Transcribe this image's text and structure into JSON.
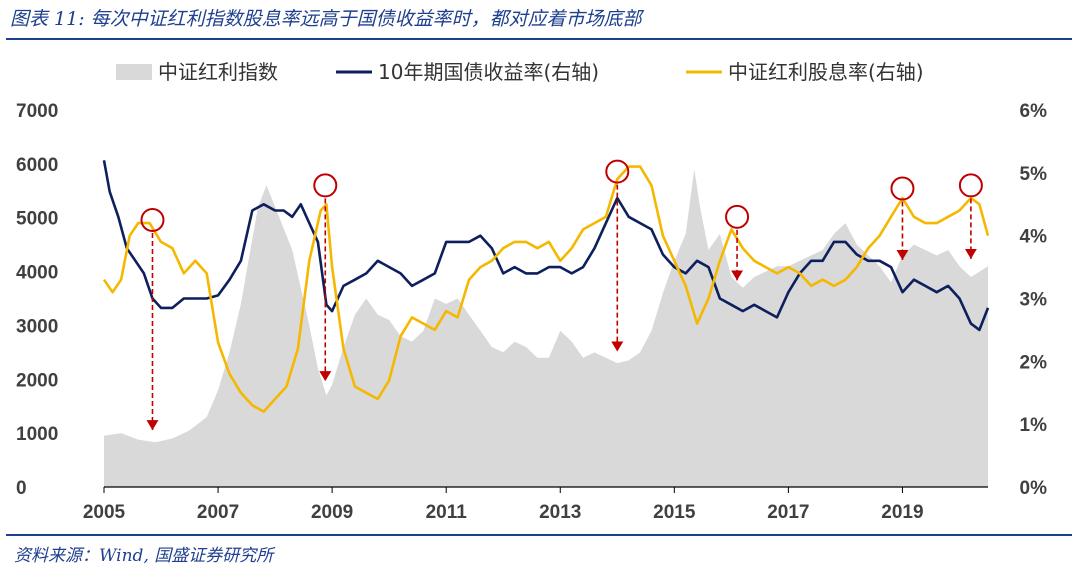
{
  "figure": {
    "title": "图表 11:  每次中证红利指数股息率远高于国债收益率时，都对应着市场底部",
    "source": "资料来源：Wind,  国盛证券研究所"
  },
  "chart_data": {
    "type": "area+line",
    "title": "",
    "xlabel": "",
    "ylabel_left": "",
    "ylabel_right": "",
    "x_ticks": [
      "2005",
      "2007",
      "2009",
      "2011",
      "2013",
      "2015",
      "2017",
      "2019"
    ],
    "x_range": [
      2005.0,
      2020.5
    ],
    "y_left": {
      "ticks": [
        "0",
        "1000",
        "2000",
        "3000",
        "4000",
        "5000",
        "6000",
        "7000"
      ],
      "range": [
        0,
        7000
      ]
    },
    "y_right": {
      "ticks": [
        "0%",
        "1%",
        "2%",
        "3%",
        "4%",
        "5%",
        "6%"
      ],
      "range": [
        0,
        6
      ],
      "unit": "%"
    },
    "legend": {
      "placement": "top"
    },
    "series": [
      {
        "name": "中证红利指数",
        "kind": "area",
        "axis": "left",
        "color": "#d9d9d9",
        "points": [
          [
            2005.0,
            950
          ],
          [
            2005.3,
            1000
          ],
          [
            2005.6,
            880
          ],
          [
            2005.9,
            830
          ],
          [
            2006.2,
            900
          ],
          [
            2006.5,
            1050
          ],
          [
            2006.8,
            1300
          ],
          [
            2007.0,
            1800
          ],
          [
            2007.2,
            2500
          ],
          [
            2007.4,
            3400
          ],
          [
            2007.55,
            4300
          ],
          [
            2007.7,
            5200
          ],
          [
            2007.85,
            5600
          ],
          [
            2008.0,
            5200
          ],
          [
            2008.15,
            4800
          ],
          [
            2008.3,
            4400
          ],
          [
            2008.45,
            3700
          ],
          [
            2008.6,
            3000
          ],
          [
            2008.75,
            2200
          ],
          [
            2008.9,
            1700
          ],
          [
            2009.0,
            1900
          ],
          [
            2009.2,
            2600
          ],
          [
            2009.4,
            3200
          ],
          [
            2009.6,
            3500
          ],
          [
            2009.8,
            3200
          ],
          [
            2010.0,
            3100
          ],
          [
            2010.2,
            2800
          ],
          [
            2010.4,
            2700
          ],
          [
            2010.6,
            2900
          ],
          [
            2010.8,
            3500
          ],
          [
            2011.0,
            3400
          ],
          [
            2011.2,
            3500
          ],
          [
            2011.4,
            3200
          ],
          [
            2011.6,
            2900
          ],
          [
            2011.8,
            2600
          ],
          [
            2012.0,
            2500
          ],
          [
            2012.2,
            2700
          ],
          [
            2012.4,
            2600
          ],
          [
            2012.6,
            2400
          ],
          [
            2012.8,
            2400
          ],
          [
            2013.0,
            2900
          ],
          [
            2013.2,
            2700
          ],
          [
            2013.4,
            2400
          ],
          [
            2013.6,
            2500
          ],
          [
            2013.8,
            2400
          ],
          [
            2014.0,
            2300
          ],
          [
            2014.2,
            2350
          ],
          [
            2014.4,
            2500
          ],
          [
            2014.6,
            2900
          ],
          [
            2014.8,
            3600
          ],
          [
            2015.0,
            4200
          ],
          [
            2015.2,
            4700
          ],
          [
            2015.35,
            5900
          ],
          [
            2015.45,
            5200
          ],
          [
            2015.6,
            4400
          ],
          [
            2015.8,
            4700
          ],
          [
            2016.0,
            3900
          ],
          [
            2016.2,
            3700
          ],
          [
            2016.4,
            3900
          ],
          [
            2016.6,
            4000
          ],
          [
            2016.8,
            4100
          ],
          [
            2017.0,
            4100
          ],
          [
            2017.2,
            4200
          ],
          [
            2017.4,
            4300
          ],
          [
            2017.6,
            4400
          ],
          [
            2017.8,
            4700
          ],
          [
            2018.0,
            4900
          ],
          [
            2018.2,
            4500
          ],
          [
            2018.4,
            4300
          ],
          [
            2018.6,
            4100
          ],
          [
            2018.8,
            3800
          ],
          [
            2019.0,
            4300
          ],
          [
            2019.2,
            4500
          ],
          [
            2019.4,
            4400
          ],
          [
            2019.6,
            4300
          ],
          [
            2019.8,
            4400
          ],
          [
            2020.0,
            4100
          ],
          [
            2020.2,
            3900
          ],
          [
            2020.5,
            4100
          ]
        ]
      },
      {
        "name": "10年期国债收益率(右轴)",
        "kind": "line",
        "axis": "right",
        "color": "#0d1f5c",
        "points": [
          [
            2005.0,
            5.2
          ],
          [
            2005.1,
            4.7
          ],
          [
            2005.25,
            4.3
          ],
          [
            2005.4,
            3.8
          ],
          [
            2005.55,
            3.6
          ],
          [
            2005.7,
            3.4
          ],
          [
            2005.85,
            3.0
          ],
          [
            2006.0,
            2.85
          ],
          [
            2006.2,
            2.85
          ],
          [
            2006.4,
            3.0
          ],
          [
            2006.6,
            3.0
          ],
          [
            2006.8,
            3.0
          ],
          [
            2007.0,
            3.05
          ],
          [
            2007.2,
            3.3
          ],
          [
            2007.4,
            3.6
          ],
          [
            2007.6,
            4.4
          ],
          [
            2007.8,
            4.5
          ],
          [
            2008.0,
            4.4
          ],
          [
            2008.15,
            4.4
          ],
          [
            2008.3,
            4.3
          ],
          [
            2008.45,
            4.5
          ],
          [
            2008.6,
            4.2
          ],
          [
            2008.75,
            3.9
          ],
          [
            2008.9,
            2.9
          ],
          [
            2009.0,
            2.8
          ],
          [
            2009.2,
            3.2
          ],
          [
            2009.4,
            3.3
          ],
          [
            2009.6,
            3.4
          ],
          [
            2009.8,
            3.6
          ],
          [
            2010.0,
            3.5
          ],
          [
            2010.2,
            3.4
          ],
          [
            2010.4,
            3.2
          ],
          [
            2010.6,
            3.3
          ],
          [
            2010.8,
            3.4
          ],
          [
            2011.0,
            3.9
          ],
          [
            2011.2,
            3.9
          ],
          [
            2011.4,
            3.9
          ],
          [
            2011.6,
            4.0
          ],
          [
            2011.8,
            3.8
          ],
          [
            2012.0,
            3.4
          ],
          [
            2012.2,
            3.5
          ],
          [
            2012.4,
            3.4
          ],
          [
            2012.6,
            3.4
          ],
          [
            2012.8,
            3.5
          ],
          [
            2013.0,
            3.5
          ],
          [
            2013.2,
            3.4
          ],
          [
            2013.4,
            3.5
          ],
          [
            2013.6,
            3.8
          ],
          [
            2013.8,
            4.2
          ],
          [
            2014.0,
            4.6
          ],
          [
            2014.2,
            4.3
          ],
          [
            2014.4,
            4.2
          ],
          [
            2014.6,
            4.1
          ],
          [
            2014.8,
            3.7
          ],
          [
            2015.0,
            3.5
          ],
          [
            2015.2,
            3.4
          ],
          [
            2015.4,
            3.6
          ],
          [
            2015.6,
            3.5
          ],
          [
            2015.8,
            3.0
          ],
          [
            2016.0,
            2.9
          ],
          [
            2016.2,
            2.8
          ],
          [
            2016.4,
            2.9
          ],
          [
            2016.6,
            2.8
          ],
          [
            2016.8,
            2.7
          ],
          [
            2017.0,
            3.1
          ],
          [
            2017.2,
            3.4
          ],
          [
            2017.4,
            3.6
          ],
          [
            2017.6,
            3.6
          ],
          [
            2017.8,
            3.9
          ],
          [
            2018.0,
            3.9
          ],
          [
            2018.2,
            3.7
          ],
          [
            2018.4,
            3.6
          ],
          [
            2018.6,
            3.6
          ],
          [
            2018.8,
            3.5
          ],
          [
            2019.0,
            3.1
          ],
          [
            2019.2,
            3.3
          ],
          [
            2019.4,
            3.2
          ],
          [
            2019.6,
            3.1
          ],
          [
            2019.8,
            3.2
          ],
          [
            2020.0,
            3.0
          ],
          [
            2020.2,
            2.6
          ],
          [
            2020.35,
            2.5
          ],
          [
            2020.5,
            2.85
          ]
        ]
      },
      {
        "name": "中证红利股息率(右轴)",
        "kind": "line",
        "axis": "right",
        "color": "#f5b800",
        "points": [
          [
            2005.0,
            3.3
          ],
          [
            2005.15,
            3.1
          ],
          [
            2005.3,
            3.3
          ],
          [
            2005.45,
            4.0
          ],
          [
            2005.6,
            4.2
          ],
          [
            2005.8,
            4.2
          ],
          [
            2006.0,
            3.9
          ],
          [
            2006.2,
            3.8
          ],
          [
            2006.4,
            3.4
          ],
          [
            2006.6,
            3.6
          ],
          [
            2006.8,
            3.4
          ],
          [
            2007.0,
            2.3
          ],
          [
            2007.2,
            1.8
          ],
          [
            2007.4,
            1.5
          ],
          [
            2007.6,
            1.3
          ],
          [
            2007.8,
            1.2
          ],
          [
            2008.0,
            1.4
          ],
          [
            2008.2,
            1.6
          ],
          [
            2008.4,
            2.2
          ],
          [
            2008.6,
            3.6
          ],
          [
            2008.8,
            4.4
          ],
          [
            2008.9,
            4.5
          ],
          [
            2009.0,
            3.5
          ],
          [
            2009.2,
            2.2
          ],
          [
            2009.4,
            1.6
          ],
          [
            2009.6,
            1.5
          ],
          [
            2009.8,
            1.4
          ],
          [
            2010.0,
            1.7
          ],
          [
            2010.2,
            2.4
          ],
          [
            2010.4,
            2.7
          ],
          [
            2010.6,
            2.6
          ],
          [
            2010.8,
            2.5
          ],
          [
            2011.0,
            2.8
          ],
          [
            2011.2,
            2.7
          ],
          [
            2011.4,
            3.3
          ],
          [
            2011.6,
            3.5
          ],
          [
            2011.8,
            3.6
          ],
          [
            2012.0,
            3.8
          ],
          [
            2012.2,
            3.9
          ],
          [
            2012.4,
            3.9
          ],
          [
            2012.6,
            3.8
          ],
          [
            2012.8,
            3.9
          ],
          [
            2013.0,
            3.6
          ],
          [
            2013.2,
            3.8
          ],
          [
            2013.4,
            4.1
          ],
          [
            2013.6,
            4.2
          ],
          [
            2013.8,
            4.3
          ],
          [
            2014.0,
            4.9
          ],
          [
            2014.2,
            5.1
          ],
          [
            2014.4,
            5.1
          ],
          [
            2014.6,
            4.8
          ],
          [
            2014.8,
            4.0
          ],
          [
            2015.0,
            3.6
          ],
          [
            2015.2,
            3.2
          ],
          [
            2015.4,
            2.6
          ],
          [
            2015.6,
            3.0
          ],
          [
            2015.8,
            3.6
          ],
          [
            2016.0,
            4.1
          ],
          [
            2016.2,
            3.8
          ],
          [
            2016.4,
            3.6
          ],
          [
            2016.6,
            3.5
          ],
          [
            2016.8,
            3.4
          ],
          [
            2017.0,
            3.5
          ],
          [
            2017.2,
            3.4
          ],
          [
            2017.4,
            3.2
          ],
          [
            2017.6,
            3.3
          ],
          [
            2017.8,
            3.2
          ],
          [
            2018.0,
            3.3
          ],
          [
            2018.2,
            3.5
          ],
          [
            2018.4,
            3.8
          ],
          [
            2018.6,
            4.0
          ],
          [
            2018.8,
            4.3
          ],
          [
            2019.0,
            4.6
          ],
          [
            2019.2,
            4.3
          ],
          [
            2019.4,
            4.2
          ],
          [
            2019.6,
            4.2
          ],
          [
            2019.8,
            4.3
          ],
          [
            2020.0,
            4.4
          ],
          [
            2020.2,
            4.6
          ],
          [
            2020.35,
            4.5
          ],
          [
            2020.5,
            4.0
          ]
        ]
      }
    ],
    "annotations": [
      {
        "marker": "circle",
        "arrow": "down",
        "x": 2005.85,
        "from_y_right": 4.25,
        "to_y_left": 870
      },
      {
        "marker": "circle",
        "arrow": "down",
        "x": 2008.88,
        "from_y_right": 4.8,
        "to_y_left": 1780
      },
      {
        "marker": "circle",
        "arrow": "down",
        "x": 2014.0,
        "from_y_right": 5.02,
        "to_y_left": 2330
      },
      {
        "marker": "circle",
        "arrow": "down",
        "x": 2016.1,
        "from_y_right": 4.3,
        "to_y_left": 3650
      },
      {
        "marker": "circle",
        "arrow": "down",
        "x": 2019.0,
        "from_y_right": 4.75,
        "to_y_left": 4030
      },
      {
        "marker": "circle",
        "arrow": "down",
        "x": 2020.2,
        "from_y_right": 4.8,
        "to_y_left": 4050
      }
    ],
    "annotation_color": "#c00000",
    "grid": false
  }
}
